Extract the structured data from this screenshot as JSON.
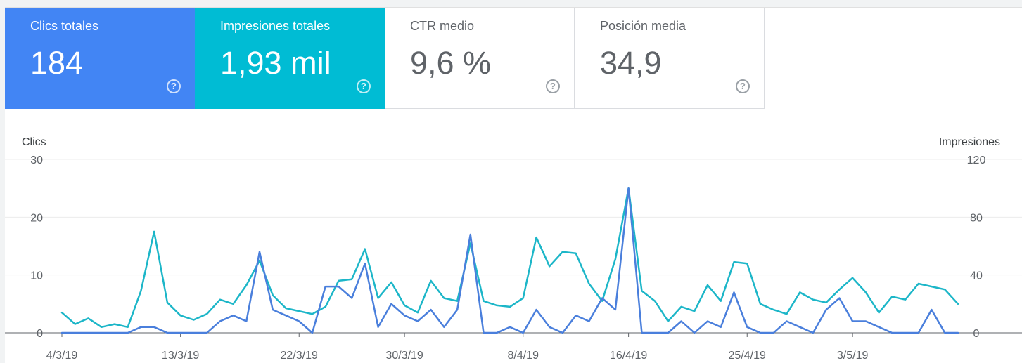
{
  "cards": [
    {
      "label": "Clics totales",
      "value": "184",
      "color": "#4285f4",
      "active": true
    },
    {
      "label": "Impresiones totales",
      "value": "1,93 mil",
      "color": "#00bcd4",
      "active": true
    },
    {
      "label": "CTR medio",
      "value": "9,6 %",
      "color": "#ffffff",
      "active": false
    },
    {
      "label": "Posición media",
      "value": "34,9",
      "color": "#ffffff",
      "active": false
    }
  ],
  "help_icon": "?",
  "chart_data": {
    "type": "line",
    "left_axis_label": "Clics",
    "right_axis_label": "Impresiones",
    "left_ylim": [
      0,
      30
    ],
    "right_ylim": [
      0,
      120
    ],
    "left_ticks": [
      "0",
      "10",
      "20",
      "30"
    ],
    "right_ticks": [
      "0",
      "40",
      "80",
      "120"
    ],
    "x_tick_labels": [
      {
        "index": 0,
        "label": "4/3/19"
      },
      {
        "index": 9,
        "label": "13/3/19"
      },
      {
        "index": 18,
        "label": "22/3/19"
      },
      {
        "index": 26,
        "label": "30/3/19"
      },
      {
        "index": 35,
        "label": "8/4/19"
      },
      {
        "index": 43,
        "label": "16/4/19"
      },
      {
        "index": 52,
        "label": "25/4/19"
      },
      {
        "index": 60,
        "label": "3/5/19"
      }
    ],
    "x_start": "4/3/19",
    "x_end": "10/5/19",
    "grid": true,
    "series": [
      {
        "name": "Clics",
        "axis": "left",
        "color": "#4a7fdc",
        "values": [
          0,
          0,
          0,
          0,
          0,
          0,
          1,
          1,
          0,
          0,
          0,
          0,
          2,
          3,
          2,
          14,
          4,
          3,
          2,
          0,
          8,
          8,
          6,
          12,
          1,
          5,
          3,
          2,
          4,
          1,
          4,
          17,
          0,
          0,
          1,
          0,
          4,
          1,
          0,
          3,
          2,
          6,
          4,
          25,
          0,
          0,
          0,
          2,
          0,
          2,
          1,
          7,
          1,
          0,
          0,
          2,
          1,
          0,
          4,
          6,
          2,
          2,
          1,
          0,
          0,
          0,
          4,
          0,
          0
        ]
      },
      {
        "name": "Impresiones",
        "axis": "right",
        "color": "#1cb6c8",
        "values": [
          14,
          6,
          10,
          4,
          6,
          4,
          29,
          70,
          21,
          12,
          9,
          13,
          23,
          20,
          33,
          50,
          26,
          17,
          15,
          13,
          18,
          36,
          37,
          58,
          24,
          35,
          19,
          14,
          36,
          24,
          22,
          62,
          22,
          19,
          18,
          24,
          66,
          46,
          56,
          55,
          34,
          22,
          51,
          100,
          29,
          22,
          8,
          18,
          15,
          33,
          22,
          49,
          48,
          20,
          16,
          13,
          28,
          23,
          21,
          30,
          38,
          28,
          14,
          25,
          23,
          34,
          32,
          30,
          20
        ]
      }
    ]
  }
}
